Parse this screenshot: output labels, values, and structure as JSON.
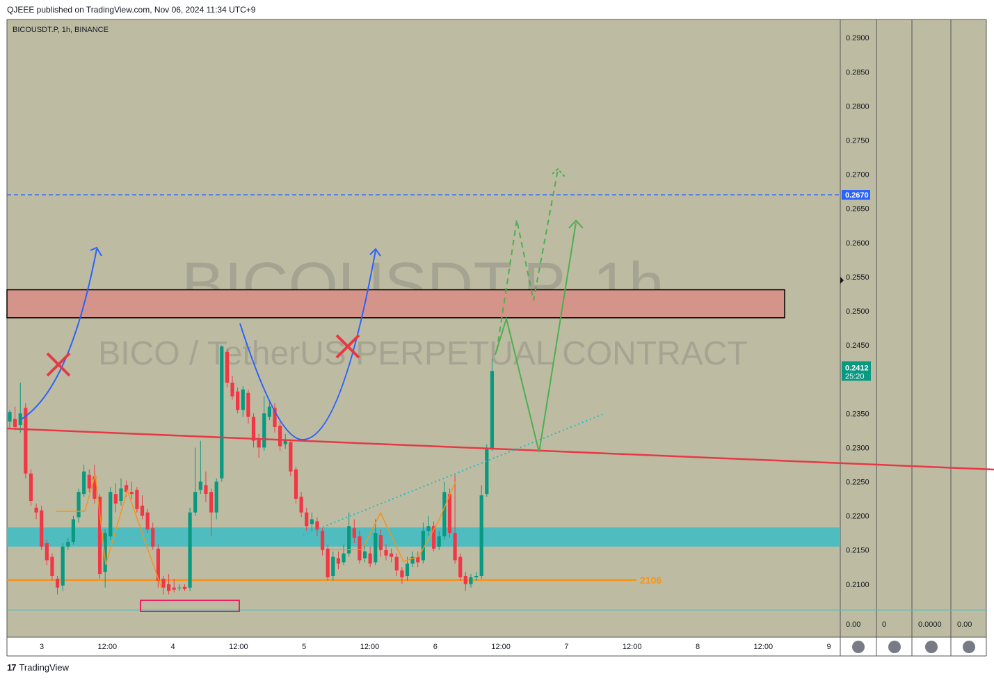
{
  "header": {
    "published": "QJEEE published on TradingView.com, Nov 06, 2024 11:34 UTC+9"
  },
  "footer": {
    "logo": "17",
    "brand": "TradingView"
  },
  "colors": {
    "background": "#bdbca2",
    "up": "#089981",
    "down": "#f23645",
    "resistance_zone": "#d4948a",
    "support_zone": "#4fbcc0",
    "trendline": "#e63946",
    "blue_line": "#2962ff",
    "orange": "#f7931a"
  },
  "chart_data": {
    "type": "candlestick",
    "symbol_label": "BICOUSDT.P, 1h, BINANCE",
    "watermark_title": "BICOUSDT.P, 1h",
    "watermark_subtitle": "BICO / TetherUS PERPETUAL CONTRACT",
    "y_ticks": [
      "0.2900",
      "0.2850",
      "0.2800",
      "0.2750",
      "0.2700",
      "0.2650",
      "0.2600",
      "0.2550",
      "0.2500",
      "0.2450",
      "0.2350",
      "0.2300",
      "0.2250",
      "0.2200",
      "0.2150",
      "0.2100"
    ],
    "y_tick_values": [
      0.29,
      0.285,
      0.28,
      0.275,
      0.27,
      0.265,
      0.26,
      0.255,
      0.25,
      0.245,
      0.235,
      0.23,
      0.225,
      0.22,
      0.215,
      0.21
    ],
    "x_ticks": [
      "3",
      "12:00",
      "4",
      "12:00",
      "5",
      "12:00",
      "6",
      "12:00",
      "7",
      "12:00",
      "8",
      "12:00",
      "9"
    ],
    "price_label": {
      "value": "0.2412",
      "countdown": "25:20",
      "price": 0.2412
    },
    "level_label": {
      "value": "0.2670",
      "price": 0.267
    },
    "support_label": {
      "text": "2106",
      "price": 0.2106
    },
    "resistance_zone": [
      0.249,
      0.2531
    ],
    "support_zone": [
      0.2155,
      0.2183
    ],
    "indicator_values": [
      "0.00",
      "0",
      "0.0000",
      "0.00"
    ],
    "candles": [
      [
        0.2338,
        0.2352,
        0.2328,
        0.2355
      ],
      [
        0.2342,
        0.233,
        0.2325,
        0.236
      ],
      [
        0.2333,
        0.235,
        0.2322,
        0.2395
      ],
      [
        0.2358,
        0.2262,
        0.2255,
        0.2365
      ],
      [
        0.2262,
        0.2222,
        0.2215,
        0.2268
      ],
      [
        0.2212,
        0.2205,
        0.2195,
        0.2218
      ],
      [
        0.2208,
        0.2155,
        0.215,
        0.2215
      ],
      [
        0.216,
        0.2135,
        0.2128,
        0.2165
      ],
      [
        0.214,
        0.2112,
        0.2105,
        0.2145
      ],
      [
        0.2108,
        0.2095,
        0.2085,
        0.2112
      ],
      [
        0.2098,
        0.2155,
        0.209,
        0.216
      ],
      [
        0.2155,
        0.2162,
        0.215,
        0.2168
      ],
      [
        0.2162,
        0.2195,
        0.2158,
        0.22
      ],
      [
        0.2198,
        0.2235,
        0.219,
        0.224
      ],
      [
        0.2232,
        0.2265,
        0.2228,
        0.2275
      ],
      [
        0.226,
        0.224,
        0.2235,
        0.2268
      ],
      [
        0.2258,
        0.2225,
        0.2218,
        0.2275
      ],
      [
        0.2228,
        0.2115,
        0.2108,
        0.2232
      ],
      [
        0.2118,
        0.2175,
        0.2095,
        0.218
      ],
      [
        0.217,
        0.2235,
        0.2165,
        0.2242
      ],
      [
        0.2232,
        0.2218,
        0.2205,
        0.2248
      ],
      [
        0.2222,
        0.224,
        0.2215,
        0.2255
      ],
      [
        0.2245,
        0.2235,
        0.2228,
        0.2252
      ],
      [
        0.2235,
        0.2232,
        0.2225,
        0.225
      ],
      [
        0.2238,
        0.221,
        0.2205,
        0.2242
      ],
      [
        0.2215,
        0.22,
        0.2195,
        0.223
      ],
      [
        0.2205,
        0.218,
        0.2175,
        0.221
      ],
      [
        0.2182,
        0.2155,
        0.215,
        0.219
      ],
      [
        0.2152,
        0.2105,
        0.2095,
        0.2158
      ],
      [
        0.2108,
        0.2095,
        0.2085,
        0.2112
      ],
      [
        0.21,
        0.209,
        0.2085,
        0.2115
      ],
      [
        0.2095,
        0.2092,
        0.2088,
        0.2108
      ],
      [
        0.2095,
        0.2095,
        0.209,
        0.21
      ],
      [
        0.2096,
        0.2093,
        0.209,
        0.21
      ],
      [
        0.2095,
        0.2205,
        0.209,
        0.2212
      ],
      [
        0.2205,
        0.2235,
        0.22,
        0.23
      ],
      [
        0.2238,
        0.225,
        0.2232,
        0.231
      ],
      [
        0.2245,
        0.2232,
        0.222,
        0.2265
      ],
      [
        0.2235,
        0.2205,
        0.217,
        0.224
      ],
      [
        0.2205,
        0.225,
        0.2195,
        0.2255
      ],
      [
        0.2255,
        0.2448,
        0.225,
        0.245
      ],
      [
        0.244,
        0.2395,
        0.2388,
        0.2445
      ],
      [
        0.2395,
        0.2375,
        0.237,
        0.2405
      ],
      [
        0.2382,
        0.2355,
        0.235,
        0.2388
      ],
      [
        0.2355,
        0.2385,
        0.2345,
        0.239
      ],
      [
        0.238,
        0.2345,
        0.2335,
        0.2385
      ],
      [
        0.2345,
        0.231,
        0.23,
        0.235
      ],
      [
        0.2312,
        0.23,
        0.2285,
        0.232
      ],
      [
        0.23,
        0.235,
        0.2295,
        0.2375
      ],
      [
        0.2345,
        0.236,
        0.234,
        0.237
      ],
      [
        0.2358,
        0.233,
        0.2322,
        0.2365
      ],
      [
        0.2332,
        0.2302,
        0.2295,
        0.2338
      ],
      [
        0.2305,
        0.231,
        0.2298,
        0.232
      ],
      [
        0.2308,
        0.2265,
        0.2258,
        0.2312
      ],
      [
        0.2268,
        0.2225,
        0.2218,
        0.2272
      ],
      [
        0.2228,
        0.2205,
        0.2198,
        0.2235
      ],
      [
        0.2205,
        0.2185,
        0.2178,
        0.2212
      ],
      [
        0.2188,
        0.2195,
        0.2178,
        0.2205
      ],
      [
        0.2192,
        0.218,
        0.217,
        0.2198
      ],
      [
        0.2178,
        0.215,
        0.2142,
        0.2182
      ],
      [
        0.2152,
        0.211,
        0.2105,
        0.2158
      ],
      [
        0.2112,
        0.214,
        0.2105,
        0.2148
      ],
      [
        0.2138,
        0.213,
        0.2122,
        0.2148
      ],
      [
        0.2132,
        0.2145,
        0.2128,
        0.2158
      ],
      [
        0.2145,
        0.2185,
        0.214,
        0.2205
      ],
      [
        0.2182,
        0.2168,
        0.216,
        0.2195
      ],
      [
        0.217,
        0.2135,
        0.213,
        0.2178
      ],
      [
        0.2138,
        0.2148,
        0.2132,
        0.216
      ],
      [
        0.2145,
        0.213,
        0.2125,
        0.2155
      ],
      [
        0.2132,
        0.2175,
        0.2128,
        0.2195
      ],
      [
        0.2172,
        0.215,
        0.214,
        0.218
      ],
      [
        0.215,
        0.2142,
        0.2135,
        0.2158
      ],
      [
        0.2145,
        0.214,
        0.2132,
        0.2152
      ],
      [
        0.214,
        0.212,
        0.2112,
        0.2145
      ],
      [
        0.212,
        0.211,
        0.21,
        0.2125
      ],
      [
        0.2112,
        0.213,
        0.2105,
        0.214
      ],
      [
        0.213,
        0.214,
        0.2125,
        0.2148
      ],
      [
        0.214,
        0.2132,
        0.2125,
        0.2148
      ],
      [
        0.2135,
        0.2178,
        0.213,
        0.219
      ],
      [
        0.2178,
        0.2185,
        0.217,
        0.22
      ],
      [
        0.2185,
        0.2152,
        0.2148,
        0.2192
      ],
      [
        0.2155,
        0.217,
        0.215,
        0.2178
      ],
      [
        0.217,
        0.2235,
        0.2165,
        0.225
      ],
      [
        0.2232,
        0.2175,
        0.2168,
        0.224
      ],
      [
        0.2175,
        0.2135,
        0.213,
        0.226
      ],
      [
        0.214,
        0.211,
        0.2105,
        0.2145
      ],
      [
        0.2112,
        0.21,
        0.209,
        0.2118
      ],
      [
        0.21,
        0.211,
        0.2095,
        0.2115
      ],
      [
        0.211,
        0.2112,
        0.2105,
        0.2118
      ],
      [
        0.2112,
        0.223,
        0.2108,
        0.2245
      ],
      [
        0.2232,
        0.2298,
        0.2228,
        0.2305
      ],
      [
        0.2298,
        0.2412,
        0.2295,
        0.243
      ]
    ]
  }
}
